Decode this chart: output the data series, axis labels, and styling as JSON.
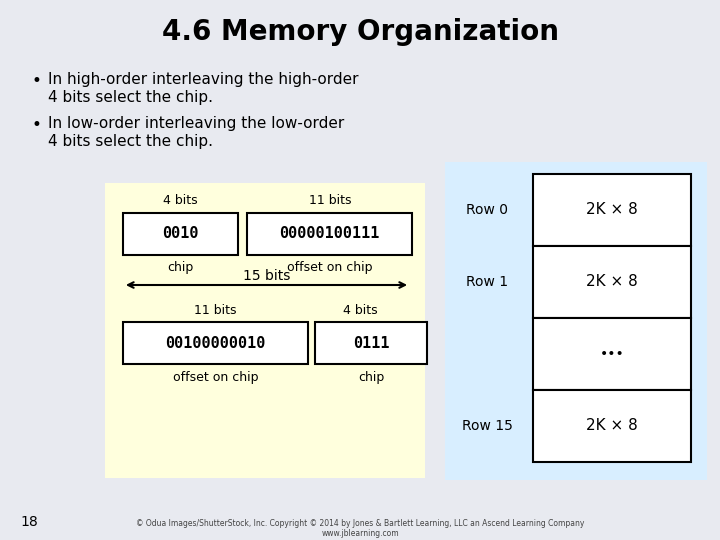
{
  "title": "4.6 Memory Organization",
  "bullet1_line1": "In high-order interleaving the high-order",
  "bullet1_line2": "4 bits select the chip.",
  "bullet2_line1": "In low-order interleaving the low-order",
  "bullet2_line2": "4 bits select the chip.",
  "bg_color": "#e8eaf0",
  "yellow_bg": "#ffffdd",
  "blue_bg": "#d8eeff",
  "top_box1_label": "4 bits",
  "top_box1_value": "0010",
  "top_box2_label": "11 bits",
  "top_box2_value": "00000100111",
  "top_chip_label": "chip",
  "top_offset_label": "offset on chip",
  "arrow_label": "15 bits",
  "bot_box1_label": "11 bits",
  "bot_box1_value": "00100000010",
  "bot_box2_label": "4 bits",
  "bot_box2_value": "0111",
  "bot_offset_label": "offset on chip",
  "bot_chip_label": "chip",
  "row_labels": [
    "Row 0",
    "Row 1",
    "",
    "Row 15"
  ],
  "row_values": [
    "2K × 8",
    "2K × 8",
    "•••",
    "2K × 8"
  ],
  "page_number": "18",
  "footer": "© Odua Images/ShutterStock, Inc. Copyright © 2014 by Jones & Bartlett Learning, LLC an Ascend Learning Company",
  "footer2": "www.jblearning.com"
}
